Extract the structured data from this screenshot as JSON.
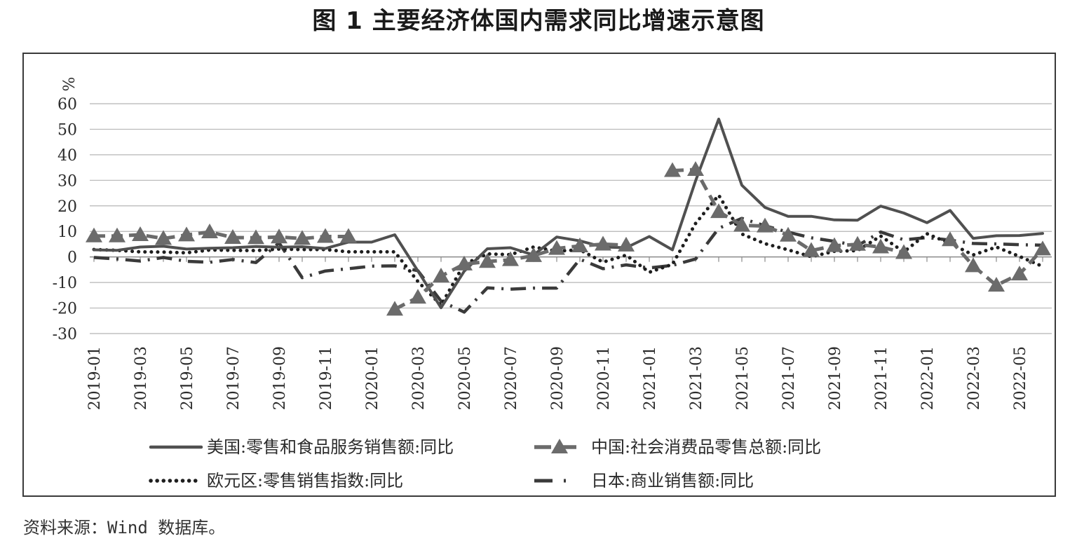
{
  "title": "图 1  主要经济体国内需求同比增速示意图",
  "source": "资料来源：Wind 数据库。",
  "chart_data": {
    "type": "line",
    "ylabel": "%",
    "ylim": [
      -30,
      60
    ],
    "yticks": [
      60,
      50,
      40,
      30,
      20,
      10,
      0,
      -10,
      -20,
      -30
    ],
    "ytick_labels": [
      "60",
      "50",
      "40",
      "30",
      "20",
      "10",
      "0",
      "-10",
      "-20",
      "-30"
    ],
    "grid": true,
    "legend_position": "bottom",
    "x": [
      "2019-01",
      "2019-02",
      "2019-03",
      "2019-04",
      "2019-05",
      "2019-06",
      "2019-07",
      "2019-08",
      "2019-09",
      "2019-10",
      "2019-11",
      "2019-12",
      "2020-01",
      "2020-02",
      "2020-03",
      "2020-04",
      "2020-05",
      "2020-06",
      "2020-07",
      "2020-08",
      "2020-09",
      "2020-10",
      "2020-11",
      "2020-12",
      "2021-01",
      "2021-02",
      "2021-03",
      "2021-04",
      "2021-05",
      "2021-06",
      "2021-07",
      "2021-08",
      "2021-09",
      "2021-10",
      "2021-11",
      "2021-12",
      "2022-01",
      "2022-02",
      "2022-03",
      "2022-04",
      "2022-05",
      "2022-06"
    ],
    "xtick_labels": [
      "2019-01",
      "2019-03",
      "2019-05",
      "2019-07",
      "2019-09",
      "2019-11",
      "2020-01",
      "2020-03",
      "2020-05",
      "2020-07",
      "2020-09",
      "2020-11",
      "2021-01",
      "2021-03",
      "2021-05",
      "2021-07",
      "2021-09",
      "2021-11",
      "2022-01",
      "2022-03",
      "2022-05"
    ],
    "series": [
      {
        "name": "美国:零售和食品服务销售额:同比",
        "legend_text": "美国:零售和食品服务销售额:同比",
        "style": "solid",
        "color": "#505050",
        "values": [
          2.8,
          2.6,
          3.9,
          4.2,
          3.1,
          3.4,
          3.6,
          4.1,
          3.8,
          4.0,
          3.3,
          5.8,
          5.8,
          8.7,
          -5.5,
          -19.9,
          -5.6,
          3.2,
          3.6,
          0.8,
          7.8,
          6.3,
          3.9,
          3.6,
          8.0,
          2.8,
          29.8,
          54.0,
          28.1,
          19.4,
          15.9,
          15.9,
          14.5,
          14.4,
          19.9,
          17.2,
          13.4,
          18.2,
          7.3,
          8.3,
          8.4,
          9.2
        ]
      },
      {
        "name": "中国:社会消费品零售总额:同比",
        "legend_text": "中国:社会消费品零售总额:同比",
        "style": "dashed-triangle",
        "color": "#6b6b6b",
        "values": [
          8.2,
          8.2,
          8.7,
          7.2,
          8.6,
          9.8,
          7.6,
          7.5,
          7.8,
          7.2,
          8.0,
          8.0,
          null,
          -20.5,
          -15.8,
          -7.5,
          -2.8,
          -1.8,
          -1.1,
          0.5,
          3.3,
          4.3,
          5.0,
          4.6,
          null,
          33.8,
          34.2,
          17.7,
          12.4,
          12.1,
          8.5,
          2.5,
          4.4,
          4.9,
          3.9,
          1.7,
          null,
          6.7,
          -3.5,
          -11.1,
          -6.7,
          3.1
        ]
      },
      {
        "name": "欧元区:零售销售指数:同比",
        "legend_text": "欧元区:零售销售指数:同比",
        "style": "dotted",
        "color": "#1e1e1e",
        "values": [
          2.9,
          2.6,
          2.0,
          1.9,
          1.6,
          2.7,
          2.6,
          2.5,
          3.1,
          2.9,
          2.9,
          2.0,
          2.0,
          2.0,
          -9.6,
          -18.9,
          -2.8,
          1.2,
          0.9,
          3.9,
          2.3,
          2.8,
          -2.0,
          0.7,
          -6.0,
          -2.9,
          13.1,
          24.2,
          9.0,
          5.2,
          2.8,
          0.1,
          2.2,
          2.5,
          8.2,
          2.0,
          9.1,
          5.3,
          0.8,
          3.9,
          0.2,
          -3.7
        ]
      },
      {
        "name": "日本:商业销售额:同比",
        "legend_text": "日本:商业销售额:同比",
        "style": "dash-dot",
        "color": "#3a3a3a",
        "values": [
          -0.2,
          -0.8,
          -1.6,
          -0.2,
          -1.7,
          -2.1,
          -1.0,
          -2.2,
          5.5,
          -8.1,
          -5.5,
          -4.6,
          -3.6,
          -3.5,
          -5.4,
          -17.3,
          -21.6,
          -12.1,
          -12.6,
          -12.2,
          -12.2,
          -0.9,
          -4.6,
          -3.1,
          -4.3,
          -3.3,
          -0.8,
          11.2,
          15.1,
          12.2,
          9.7,
          7.5,
          6.1,
          4.4,
          9.8,
          6.7,
          7.6,
          6.6,
          5.3,
          5.1,
          4.8,
          4.6
        ]
      }
    ]
  }
}
